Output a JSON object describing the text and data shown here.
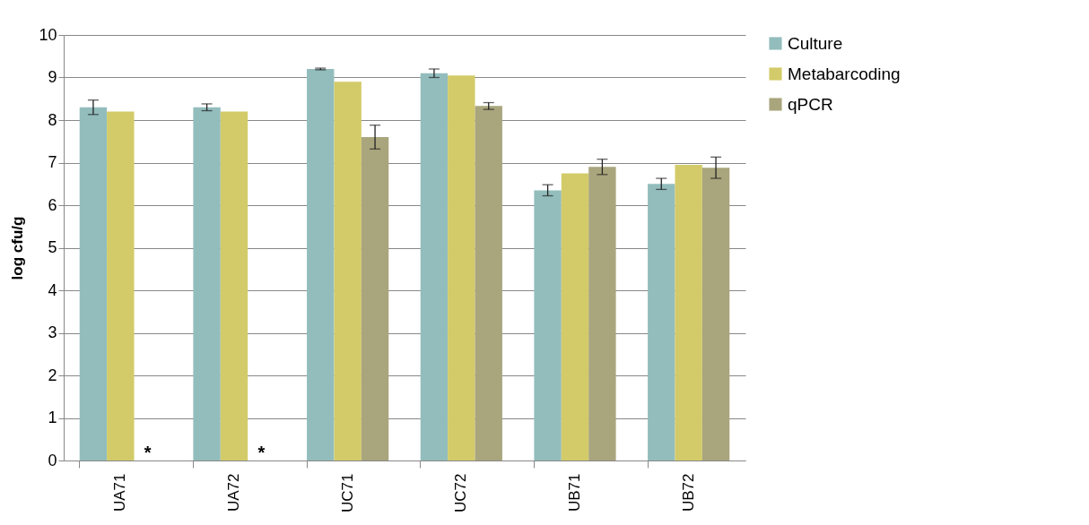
{
  "chart_data": {
    "type": "bar",
    "ylabel": "log cfu/g",
    "categories": [
      "UA71",
      "UA72",
      "UC71",
      "UC72",
      "UB71",
      "UB72"
    ],
    "series": [
      {
        "name": "Culture",
        "color": "#93bdbd",
        "values": [
          8.3,
          8.3,
          9.2,
          9.1,
          6.35,
          6.5
        ],
        "errors": [
          0.17,
          0.08,
          0.02,
          0.1,
          0.13,
          0.13
        ]
      },
      {
        "name": "Metabarcoding",
        "color": "#d3cb69",
        "values": [
          8.2,
          8.2,
          8.9,
          9.05,
          6.75,
          6.95
        ]
      },
      {
        "name": "qPCR",
        "color": "#a9a57d",
        "values": [
          null,
          null,
          7.6,
          8.33,
          6.9,
          6.88
        ],
        "errors": [
          null,
          null,
          0.28,
          0.08,
          0.18,
          0.25
        ]
      }
    ],
    "ylim": [
      0,
      10
    ],
    "yticks": [
      0,
      1,
      2,
      3,
      4,
      5,
      6,
      7,
      8,
      9,
      10
    ],
    "grid": "y",
    "legend": "right",
    "annotations": [
      {
        "text": "*",
        "x": "UA71",
        "y": 0
      },
      {
        "text": "*",
        "x": "UA72",
        "y": 0
      }
    ]
  }
}
